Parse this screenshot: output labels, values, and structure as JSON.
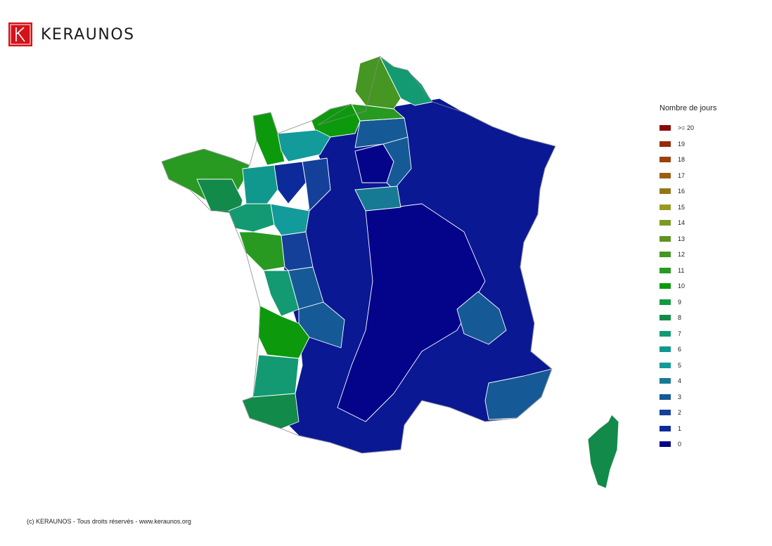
{
  "brand": {
    "name": "KERAUNOS",
    "logo_color": "#d4121a"
  },
  "legend": {
    "title": "Nombre de jours",
    "items": [
      {
        "label": ">= 20",
        "color": "#8b0a0a"
      },
      {
        "label": "19",
        "color": "#962a0a"
      },
      {
        "label": "18",
        "color": "#9a420a"
      },
      {
        "label": "17",
        "color": "#9a5e14"
      },
      {
        "label": "16",
        "color": "#94761a"
      },
      {
        "label": "15",
        "color": "#9a9a22"
      },
      {
        "label": "14",
        "color": "#7c9a22"
      },
      {
        "label": "13",
        "color": "#5e9422"
      },
      {
        "label": "12",
        "color": "#459622"
      },
      {
        "label": "11",
        "color": "#289a22"
      },
      {
        "label": "10",
        "color": "#0c9a0c"
      },
      {
        "label": "9",
        "color": "#109a3e"
      },
      {
        "label": "8",
        "color": "#128a4a"
      },
      {
        "label": "7",
        "color": "#139a72"
      },
      {
        "label": "6",
        "color": "#11988e"
      },
      {
        "label": "5",
        "color": "#139a9a"
      },
      {
        "label": "4",
        "color": "#167a94"
      },
      {
        "label": "3",
        "color": "#155a96"
      },
      {
        "label": "2",
        "color": "#14409a"
      },
      {
        "label": "1",
        "color": "#0d2a9a"
      },
      {
        "label": "0",
        "color": "#04048a"
      }
    ]
  },
  "map": {
    "regions": [
      {
        "name": "bretagne",
        "value": "11"
      },
      {
        "name": "normandie",
        "value": "11"
      },
      {
        "name": "nord",
        "value": "13"
      },
      {
        "name": "nord-coast",
        "value": "7"
      },
      {
        "name": "aquitaine-landes",
        "value": "7"
      },
      {
        "name": "gironde",
        "value": "10"
      },
      {
        "name": "vendee",
        "value": "11"
      },
      {
        "name": "corse",
        "value": "8"
      },
      {
        "name": "interior",
        "value": "0"
      }
    ]
  },
  "footer": {
    "copyright": "(c) KERAUNOS - Tous droits réservés - www.keraunos.org"
  }
}
